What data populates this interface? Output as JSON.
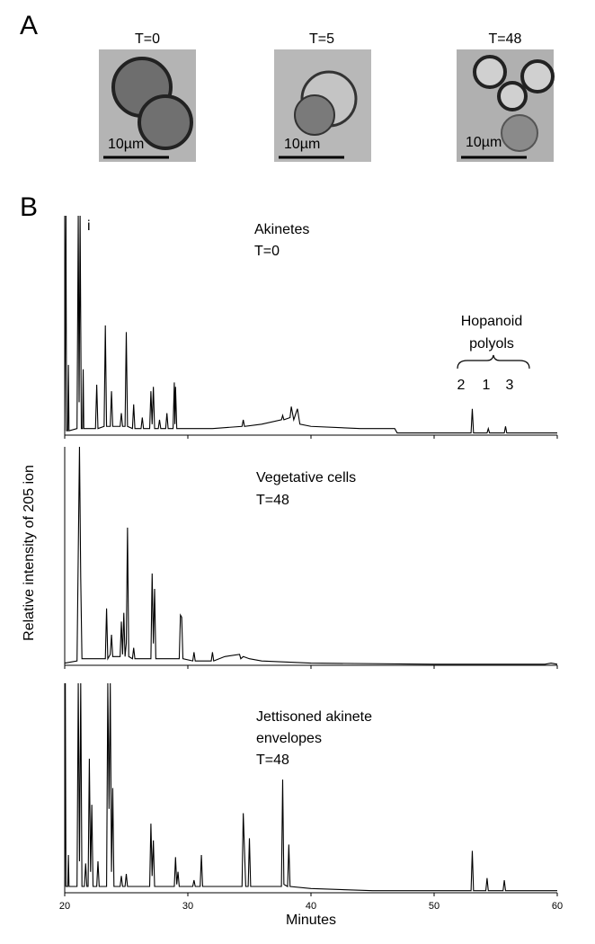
{
  "panel_labels": [
    "A",
    "B"
  ],
  "micrographs": [
    {
      "time": "T=0",
      "scale_bar": "10µm"
    },
    {
      "time": "T=5",
      "scale_bar": "10µm"
    },
    {
      "time": "T=48",
      "scale_bar": "10µm"
    }
  ],
  "chart_data": [
    {
      "type": "line",
      "annotations": [
        "i",
        "Akinetes",
        "T=0",
        "Hopanoid",
        "polyols",
        "2",
        "1",
        "3"
      ],
      "xlim": [
        20,
        60
      ],
      "xticks": [
        20,
        30,
        40,
        50,
        60
      ],
      "ylim": [
        0,
        100
      ],
      "color": "#000000",
      "x": [
        20.0,
        20.1,
        20.15,
        20.25,
        20.3,
        20.35,
        21.0,
        21.1,
        21.17,
        21.25,
        21.35,
        21.45,
        21.5,
        21.55,
        22.5,
        22.6,
        22.7,
        23.2,
        23.3,
        23.4,
        23.7,
        23.8,
        23.9,
        24.5,
        24.6,
        24.7,
        24.9,
        25.0,
        25.1,
        25.5,
        25.6,
        25.7,
        26.2,
        26.3,
        26.4,
        26.9,
        27.0,
        27.1,
        27.2,
        27.3,
        27.6,
        27.7,
        27.8,
        28.2,
        28.3,
        28.4,
        28.8,
        28.9,
        28.95,
        29.0,
        29.1,
        30,
        32,
        34.4,
        34.5,
        34.6,
        36,
        37.6,
        37.7,
        37.8,
        38.3,
        38.4,
        38.6,
        38.9,
        39.1,
        40,
        44,
        46.8,
        47,
        50,
        53.0,
        53.1,
        53.2,
        54.3,
        54.4,
        54.5,
        55.7,
        55.8,
        55.9,
        60
      ],
      "values": [
        2,
        100,
        2,
        2,
        32,
        2,
        3,
        100,
        15,
        100,
        3,
        3,
        30,
        3,
        3,
        23,
        3,
        4,
        50,
        4,
        4,
        20,
        4,
        4,
        10,
        4,
        4,
        47,
        4,
        3,
        14,
        3,
        3,
        8,
        3,
        3,
        20,
        5,
        22,
        3,
        3,
        7,
        3,
        3,
        10,
        3,
        3,
        24,
        5,
        22,
        3,
        3,
        3,
        4,
        7,
        4,
        5,
        7,
        9,
        7,
        8,
        13,
        7,
        12,
        5,
        4,
        3,
        3,
        1,
        1,
        1,
        12,
        1,
        1,
        3,
        1,
        1,
        4,
        1,
        1
      ]
    },
    {
      "type": "line",
      "annotations": [
        "Vegetative cells",
        "T=48"
      ],
      "ylabel": "Relative intensity of 205 ion",
      "xlim": [
        20,
        60
      ],
      "xticks": [
        20,
        30,
        40,
        50,
        60
      ],
      "ylim": [
        0,
        100
      ],
      "color": "#000000",
      "x": [
        20.0,
        21.0,
        21.2,
        21.3,
        21.4,
        21.5,
        23.3,
        23.4,
        23.5,
        23.7,
        23.8,
        23.9,
        24.5,
        24.6,
        24.7,
        24.8,
        24.9,
        25.0,
        25.1,
        25.2,
        25.5,
        25.6,
        25.7,
        27.0,
        27.1,
        27.2,
        27.3,
        27.4,
        29.3,
        29.4,
        29.5,
        29.6,
        30.4,
        30.5,
        30.6,
        31.9,
        32.0,
        32.1,
        33.0,
        34.2,
        34.3,
        34.5,
        35,
        36,
        40,
        50,
        55,
        59,
        59.5,
        60
      ],
      "values": [
        1,
        2,
        100,
        40,
        3,
        3,
        3,
        26,
        3,
        5,
        14,
        4,
        4,
        20,
        5,
        24,
        4,
        10,
        63,
        4,
        3,
        8,
        3,
        3,
        42,
        10,
        35,
        3,
        3,
        23,
        22,
        3,
        2,
        6,
        2,
        2,
        6,
        2,
        4,
        5,
        3,
        4,
        3,
        2,
        1,
        0.5,
        0.5,
        0.5,
        1,
        0.5
      ]
    },
    {
      "type": "line",
      "annotations": [
        "Jettisoned akinete",
        "envelopes",
        "T=48"
      ],
      "xlabel": "Minutes",
      "xlim": [
        20,
        60
      ],
      "xticks": [
        20,
        30,
        40,
        50,
        60
      ],
      "ylim": [
        0,
        100
      ],
      "color": "#000000",
      "x": [
        20.0,
        20.05,
        20.1,
        20.25,
        20.3,
        20.35,
        21.0,
        21.1,
        21.2,
        21.3,
        21.4,
        21.6,
        21.7,
        21.8,
        21.9,
        22.0,
        22.1,
        22.2,
        22.3,
        22.6,
        22.7,
        22.8,
        23.4,
        23.5,
        23.6,
        23.7,
        23.8,
        23.9,
        24.0,
        24.5,
        24.6,
        24.7,
        24.9,
        25.0,
        25.1,
        26.9,
        27.0,
        27.1,
        27.2,
        27.3,
        28.9,
        29.0,
        29.1,
        29.2,
        29.3,
        30.4,
        30.5,
        30.6,
        31.0,
        31.1,
        31.2,
        34.4,
        34.5,
        34.7,
        34.9,
        35.0,
        35.1,
        37.6,
        37.7,
        37.8,
        38.1,
        38.2,
        38.3,
        40,
        45,
        53.0,
        53.1,
        53.2,
        54.2,
        54.3,
        54.4,
        55.6,
        55.7,
        55.8,
        60
      ],
      "values": [
        3,
        100,
        3,
        3,
        18,
        3,
        3,
        100,
        15,
        100,
        3,
        3,
        14,
        3,
        3,
        64,
        10,
        42,
        3,
        3,
        15,
        3,
        3,
        100,
        40,
        100,
        10,
        50,
        3,
        3,
        8,
        3,
        3,
        9,
        3,
        3,
        33,
        8,
        25,
        3,
        3,
        17,
        4,
        10,
        3,
        3,
        6,
        3,
        3,
        18,
        3,
        3,
        38,
        3,
        3,
        26,
        3,
        3,
        54,
        4,
        3,
        23,
        3,
        2,
        1,
        1,
        20,
        1,
        1,
        7,
        1,
        1,
        6,
        1,
        1
      ]
    }
  ]
}
